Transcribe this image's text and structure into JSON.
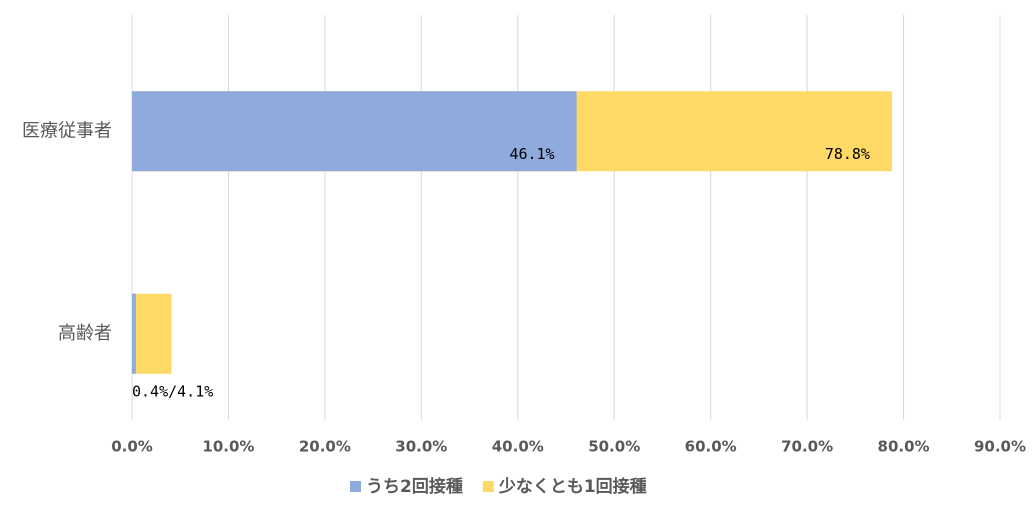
{
  "chart_data": {
    "type": "bar",
    "orientation": "horizontal",
    "overlap": true,
    "categories": [
      "医療従事者",
      "高齢者"
    ],
    "series": [
      {
        "name": "少なくとも1回接種",
        "color": "#ffd966",
        "values": [
          78.8,
          4.1
        ],
        "value_labels": [
          "78.8%",
          null
        ]
      },
      {
        "name": "うち2回接種",
        "color": "#8faadc",
        "values": [
          46.1,
          0.4
        ],
        "value_labels": [
          "46.1%",
          null
        ]
      }
    ],
    "annotations": [
      {
        "text": "0.4%/4.1%",
        "category": 1
      }
    ],
    "legend_order": [
      1,
      0
    ],
    "xlim": [
      0,
      90
    ],
    "xticks": [
      {
        "value": 0,
        "label": "0.0%"
      },
      {
        "value": 10,
        "label": "10.0%"
      },
      {
        "value": 20,
        "label": "20.0%"
      },
      {
        "value": 30,
        "label": "30.0%"
      },
      {
        "value": 40,
        "label": "40.0%"
      },
      {
        "value": 50,
        "label": "50.0%"
      },
      {
        "value": 60,
        "label": "60.0%"
      },
      {
        "value": 70,
        "label": "70.0%"
      },
      {
        "value": 80,
        "label": "80.0%"
      },
      {
        "value": 90,
        "label": "90.0%"
      }
    ],
    "grid": true,
    "legend": "bottom"
  }
}
